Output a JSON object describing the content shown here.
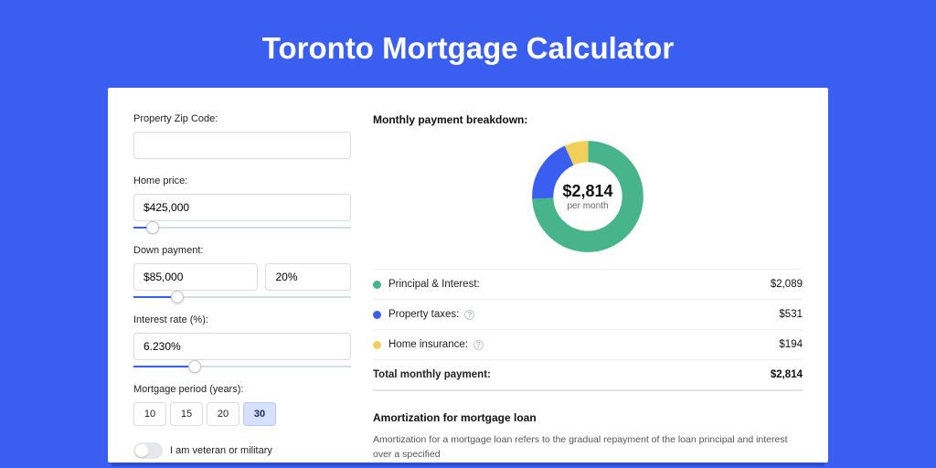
{
  "page": {
    "title": "Toronto Mortgage Calculator",
    "background_color": "#3a5ff0",
    "card_background": "#ffffff"
  },
  "form": {
    "zip": {
      "label": "Property Zip Code:",
      "value": ""
    },
    "home_price": {
      "label": "Home price:",
      "value": "$425,000",
      "slider_percent": 9
    },
    "down_payment": {
      "label": "Down payment:",
      "amount": "$85,000",
      "percent": "20%",
      "slider_percent": 20
    },
    "interest_rate": {
      "label": "Interest rate (%):",
      "value": "6.230%",
      "slider_percent": 28
    },
    "period": {
      "label": "Mortgage period (years):",
      "options": [
        "10",
        "15",
        "20",
        "30"
      ],
      "selected": "30"
    },
    "veteran": {
      "label": "I am veteran or military",
      "checked": false
    }
  },
  "breakdown": {
    "title": "Monthly payment breakdown:",
    "center_amount": "$2,814",
    "center_sub": "per month",
    "donut": {
      "type": "donut",
      "slices": [
        {
          "key": "principal_interest",
          "value": 2089,
          "color": "#47b48b"
        },
        {
          "key": "property_taxes",
          "value": 531,
          "color": "#3a5ff0"
        },
        {
          "key": "home_insurance",
          "value": 194,
          "color": "#f1cf5b"
        }
      ],
      "hole_ratio": 0.62,
      "thickness": 24,
      "diameter": 130,
      "background": "#ffffff"
    },
    "rows": [
      {
        "key": "principal_interest",
        "label": "Principal & Interest:",
        "value": "$2,089",
        "color": "#47b48b",
        "has_info": false
      },
      {
        "key": "property_taxes",
        "label": "Property taxes:",
        "value": "$531",
        "color": "#3a5ff0",
        "has_info": true
      },
      {
        "key": "home_insurance",
        "label": "Home insurance:",
        "value": "$194",
        "color": "#f1cf5b",
        "has_info": true
      }
    ],
    "total": {
      "label": "Total monthly payment:",
      "value": "$2,814"
    }
  },
  "amortization": {
    "title": "Amortization for mortgage loan",
    "text": "Amortization for a mortgage loan refers to the gradual repayment of the loan principal and interest over a specified"
  }
}
